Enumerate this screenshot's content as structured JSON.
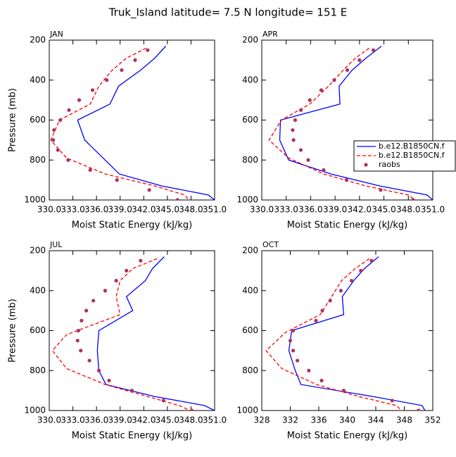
{
  "title": "Truk_Island  latitude= 7.5 N longitude= 151 E",
  "chart_data": [
    {
      "type": "line",
      "title": "JAN",
      "xlabel": "Moist Static Energy (kJ/kg)",
      "ylabel": "Pressure (mb)",
      "xlim": [
        330,
        351
      ],
      "ylim": [
        1000,
        200
      ],
      "y_reversed": true,
      "xticks": [
        {
          "value": 330,
          "label": "330.0"
        },
        {
          "value": 333,
          "label": "333.0"
        },
        {
          "value": 336,
          "label": "336.0"
        },
        {
          "value": 339,
          "label": "339.0"
        },
        {
          "value": 342,
          "label": "342.0"
        },
        {
          "value": 345,
          "label": "345.0"
        },
        {
          "value": 348,
          "label": "348.0"
        },
        {
          "value": 351,
          "label": "351.0"
        }
      ],
      "yticks": [
        200,
        400,
        600,
        800,
        1000
      ],
      "series": [
        {
          "color": "#0000ff",
          "dash": false,
          "x": [
            344.8,
            343.4,
            341.6,
            338.8,
            337.7,
            333.6,
            334.5,
            338.9,
            344.3,
            350.2,
            351
          ],
          "y": [
            230,
            290,
            350,
            430,
            520,
            600,
            700,
            870,
            930,
            975,
            1000
          ]
        },
        {
          "color": "#ff0000",
          "dash": true,
          "x": [
            342.3,
            339.8,
            338,
            336.3,
            335.2,
            331.3,
            330.2,
            332.2,
            337.1,
            343.4,
            347.2,
            347.7
          ],
          "y": [
            240,
            290,
            350,
            430,
            520,
            600,
            700,
            790,
            870,
            930,
            975,
            1000
          ]
        },
        {
          "color": "#b03060",
          "marker": "dot",
          "x": [
            342.5,
            340.9,
            339.2,
            337.3,
            335.5,
            333.8,
            332.5,
            331.4,
            330.6,
            330.5,
            331.1,
            332.4,
            335.2,
            338.6,
            342.7,
            346.3
          ],
          "y": [
            250,
            300,
            350,
            400,
            450,
            500,
            550,
            600,
            650,
            700,
            750,
            800,
            850,
            900,
            950,
            1000
          ]
        }
      ]
    },
    {
      "type": "line",
      "title": "APR",
      "xlabel": "Moist Static Energy (kJ/kg)",
      "legend": "right",
      "xlim": [
        330,
        351
      ],
      "ylim": [
        1000,
        200
      ],
      "y_reversed": true,
      "xticks": [
        {
          "value": 330,
          "label": "330.0"
        },
        {
          "value": 333,
          "label": "333.0"
        },
        {
          "value": 336,
          "label": "336.0"
        },
        {
          "value": 339,
          "label": "339.0"
        },
        {
          "value": 342,
          "label": "342.0"
        },
        {
          "value": 345,
          "label": "345.0"
        },
        {
          "value": 348,
          "label": "348.0"
        },
        {
          "value": 351,
          "label": "351.0"
        }
      ],
      "yticks": [
        200,
        400,
        600,
        800,
        1000
      ],
      "series": [
        {
          "name": "b.e12.B1850CN.f",
          "color": "#0000ff",
          "dash": false,
          "x": [
            344.7,
            342.8,
            341.1,
            339.5,
            339.6,
            332.3,
            332.2,
            333.3,
            338.5,
            344.5,
            350.3,
            351
          ],
          "y": [
            230,
            290,
            350,
            430,
            520,
            600,
            700,
            800,
            870,
            930,
            975,
            1000
          ]
        },
        {
          "name": "b.e12.B1850CN.f",
          "color": "#ff0000",
          "dash": true,
          "x": [
            343.2,
            341.5,
            340,
            338.2,
            335.9,
            332.4,
            330.9,
            333.3,
            337.6,
            342.8,
            348,
            348.8
          ],
          "y": [
            240,
            290,
            350,
            430,
            520,
            600,
            700,
            790,
            870,
            930,
            975,
            1000
          ]
        },
        {
          "name": "raobs",
          "color": "#b03060",
          "marker": "dot",
          "x": [
            343.7,
            342,
            340.5,
            338.9,
            337.3,
            335.9,
            334.8,
            334.1,
            333.8,
            333.9,
            334.8,
            335.7,
            337.6,
            340.4,
            344.6,
            348.6
          ],
          "y": [
            250,
            300,
            350,
            400,
            450,
            500,
            550,
            600,
            650,
            700,
            750,
            800,
            850,
            900,
            950,
            1000
          ]
        }
      ]
    },
    {
      "type": "line",
      "title": "JUL",
      "xlabel": "Moist Static Energy (kJ/kg)",
      "ylabel": "Pressure (mb)",
      "xlim": [
        330,
        351
      ],
      "ylim": [
        1000,
        200
      ],
      "y_reversed": true,
      "xticks": [
        {
          "value": 330,
          "label": "330.0"
        },
        {
          "value": 333,
          "label": "333.0"
        },
        {
          "value": 336,
          "label": "336.0"
        },
        {
          "value": 339,
          "label": "339.0"
        },
        {
          "value": 342,
          "label": "342.0"
        },
        {
          "value": 345,
          "label": "345.0"
        },
        {
          "value": 348,
          "label": "348.0"
        },
        {
          "value": 351,
          "label": "351.0"
        }
      ],
      "yticks": [
        200,
        400,
        600,
        800,
        1000
      ],
      "series": [
        {
          "color": "#0000ff",
          "dash": false,
          "x": [
            344.6,
            343.1,
            342.2,
            339.8,
            340.6,
            336.3,
            336.1,
            336.3,
            337.2,
            343.4,
            349.7,
            351
          ],
          "y": [
            230,
            290,
            350,
            430,
            500,
            600,
            700,
            800,
            870,
            930,
            975,
            1000
          ]
        },
        {
          "color": "#ff0000",
          "dash": true,
          "x": [
            343.7,
            340.6,
            339,
            338.5,
            339,
            332.2,
            330.4,
            332.2,
            337.1,
            342.5,
            346.5,
            347.9
          ],
          "y": [
            240,
            290,
            350,
            430,
            520,
            620,
            700,
            790,
            870,
            930,
            975,
            1000
          ]
        },
        {
          "color": "#b03060",
          "marker": "dot",
          "x": [
            341.6,
            339.8,
            338.5,
            337.1,
            335.6,
            334.7,
            334.1,
            333.7,
            333.6,
            334,
            335.1,
            336.3,
            337.6,
            340.5,
            344.5,
            348.1
          ],
          "y": [
            250,
            300,
            350,
            400,
            450,
            500,
            550,
            600,
            650,
            700,
            750,
            800,
            850,
            900,
            950,
            1000
          ]
        }
      ]
    },
    {
      "type": "line",
      "title": "OCT",
      "xlabel": "Moist Static Energy (kJ/kg)",
      "xlim": [
        328,
        352
      ],
      "ylim": [
        1000,
        200
      ],
      "y_reversed": true,
      "xticks": [
        328,
        332,
        336,
        340,
        344,
        348,
        352
      ],
      "yticks": [
        200,
        400,
        600,
        800,
        1000
      ],
      "series": [
        {
          "color": "#0000ff",
          "dash": false,
          "x": [
            344.4,
            342.4,
            340.9,
            339.3,
            339.5,
            332.2,
            331.8,
            332.7,
            333.5,
            343.6,
            350.5,
            350.9
          ],
          "y": [
            230,
            290,
            350,
            430,
            520,
            600,
            700,
            800,
            870,
            930,
            975,
            1000
          ]
        },
        {
          "color": "#ff0000",
          "dash": true,
          "x": [
            343.1,
            341.1,
            339.2,
            337.8,
            336.2,
            331.3,
            328.6,
            330.8,
            335.7,
            341.6,
            346.9,
            347.6
          ],
          "y": [
            240,
            290,
            350,
            430,
            520,
            610,
            700,
            790,
            870,
            930,
            975,
            1000
          ]
        },
        {
          "color": "#b03060",
          "marker": "dot",
          "x": [
            343.4,
            341.9,
            340.6,
            339.1,
            337.6,
            336.5,
            335.6,
            332.4,
            332,
            332.4,
            333,
            334.6,
            336.4,
            339.5,
            346.3,
            350
          ],
          "y": [
            250,
            300,
            350,
            400,
            450,
            500,
            550,
            600,
            650,
            700,
            750,
            800,
            850,
            900,
            950,
            1000
          ]
        }
      ]
    }
  ]
}
